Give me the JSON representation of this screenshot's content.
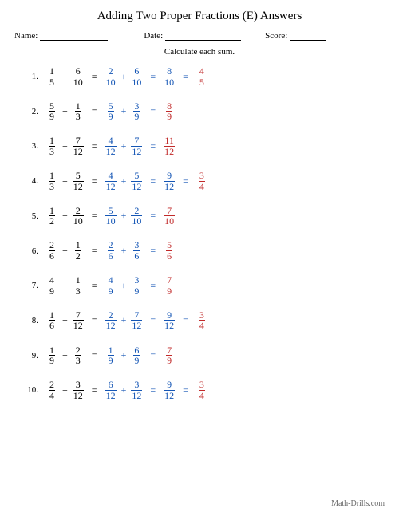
{
  "title": "Adding Two Proper Fractions (E) Answers",
  "labels": {
    "name": "Name:",
    "date": "Date:",
    "score": "Score:"
  },
  "instruction": "Calculate each sum.",
  "footer": "Math-Drills.com",
  "colors": {
    "problem": "#000000",
    "work": "#1556b5",
    "answer": "#c12a2a"
  },
  "problems": [
    {
      "n": "1.",
      "a": {
        "n": "1",
        "d": "5"
      },
      "b": {
        "n": "6",
        "d": "10"
      },
      "c": {
        "n": "2",
        "d": "10"
      },
      "d": {
        "n": "6",
        "d": "10"
      },
      "s": {
        "n": "8",
        "d": "10"
      },
      "r": {
        "n": "4",
        "d": "5"
      }
    },
    {
      "n": "2.",
      "a": {
        "n": "5",
        "d": "9"
      },
      "b": {
        "n": "1",
        "d": "3"
      },
      "c": {
        "n": "5",
        "d": "9"
      },
      "d": {
        "n": "3",
        "d": "9"
      },
      "s": null,
      "r": {
        "n": "8",
        "d": "9"
      }
    },
    {
      "n": "3.",
      "a": {
        "n": "1",
        "d": "3"
      },
      "b": {
        "n": "7",
        "d": "12"
      },
      "c": {
        "n": "4",
        "d": "12"
      },
      "d": {
        "n": "7",
        "d": "12"
      },
      "s": null,
      "r": {
        "n": "11",
        "d": "12"
      }
    },
    {
      "n": "4.",
      "a": {
        "n": "1",
        "d": "3"
      },
      "b": {
        "n": "5",
        "d": "12"
      },
      "c": {
        "n": "4",
        "d": "12"
      },
      "d": {
        "n": "5",
        "d": "12"
      },
      "s": {
        "n": "9",
        "d": "12"
      },
      "r": {
        "n": "3",
        "d": "4"
      }
    },
    {
      "n": "5.",
      "a": {
        "n": "1",
        "d": "2"
      },
      "b": {
        "n": "2",
        "d": "10"
      },
      "c": {
        "n": "5",
        "d": "10"
      },
      "d": {
        "n": "2",
        "d": "10"
      },
      "s": null,
      "r": {
        "n": "7",
        "d": "10"
      }
    },
    {
      "n": "6.",
      "a": {
        "n": "2",
        "d": "6"
      },
      "b": {
        "n": "1",
        "d": "2"
      },
      "c": {
        "n": "2",
        "d": "6"
      },
      "d": {
        "n": "3",
        "d": "6"
      },
      "s": null,
      "r": {
        "n": "5",
        "d": "6"
      }
    },
    {
      "n": "7.",
      "a": {
        "n": "4",
        "d": "9"
      },
      "b": {
        "n": "1",
        "d": "3"
      },
      "c": {
        "n": "4",
        "d": "9"
      },
      "d": {
        "n": "3",
        "d": "9"
      },
      "s": null,
      "r": {
        "n": "7",
        "d": "9"
      }
    },
    {
      "n": "8.",
      "a": {
        "n": "1",
        "d": "6"
      },
      "b": {
        "n": "7",
        "d": "12"
      },
      "c": {
        "n": "2",
        "d": "12"
      },
      "d": {
        "n": "7",
        "d": "12"
      },
      "s": {
        "n": "9",
        "d": "12"
      },
      "r": {
        "n": "3",
        "d": "4"
      }
    },
    {
      "n": "9.",
      "a": {
        "n": "1",
        "d": "9"
      },
      "b": {
        "n": "2",
        "d": "3"
      },
      "c": {
        "n": "1",
        "d": "9"
      },
      "d": {
        "n": "6",
        "d": "9"
      },
      "s": null,
      "r": {
        "n": "7",
        "d": "9"
      }
    },
    {
      "n": "10.",
      "a": {
        "n": "2",
        "d": "4"
      },
      "b": {
        "n": "3",
        "d": "12"
      },
      "c": {
        "n": "6",
        "d": "12"
      },
      "d": {
        "n": "3",
        "d": "12"
      },
      "s": {
        "n": "9",
        "d": "12"
      },
      "r": {
        "n": "3",
        "d": "4"
      }
    }
  ]
}
